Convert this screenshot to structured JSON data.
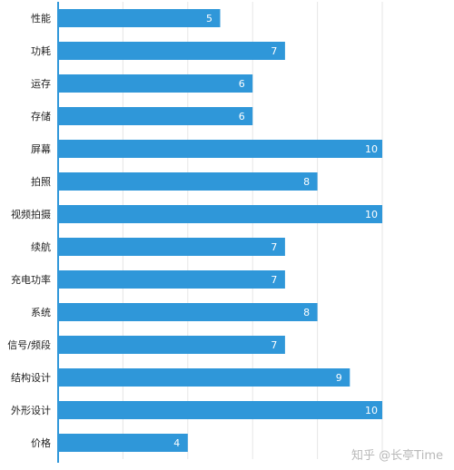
{
  "chart_data": {
    "type": "bar",
    "orientation": "horizontal",
    "categories": [
      "性能",
      "功耗",
      "运存",
      "存储",
      "屏幕",
      "拍照",
      "视频拍摄",
      "续航",
      "充电功率",
      "系统",
      "信号/频段",
      "结构设计",
      "外形设计",
      "价格"
    ],
    "values": [
      5,
      7,
      6,
      6,
      10,
      8,
      10,
      7,
      7,
      8,
      7,
      9,
      10,
      4
    ],
    "xlim": [
      0,
      10
    ],
    "xticks": [
      0,
      2,
      4,
      6,
      8,
      10
    ],
    "grid": true,
    "bar_color": "#2f97d9",
    "axis_color": "#2f97d9"
  },
  "watermark": "知乎 @长亭Time"
}
